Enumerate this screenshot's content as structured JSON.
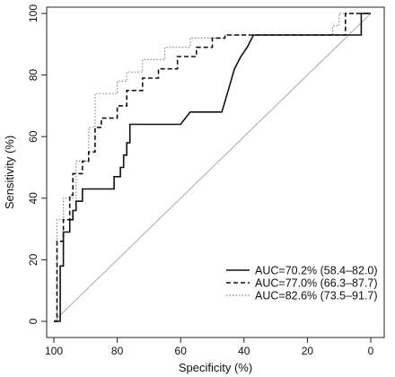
{
  "chart_data": {
    "type": "line",
    "xlabel": "Specificity (%)",
    "ylabel": "Sensitivity (%)",
    "x_reversed": true,
    "xlim": [
      100,
      0
    ],
    "ylim": [
      0,
      100
    ],
    "xticks": [
      100,
      80,
      60,
      40,
      20,
      0
    ],
    "yticks": [
      0,
      20,
      40,
      60,
      80,
      100
    ],
    "grid": false,
    "legend_position": "bottom-right",
    "reference_line": {
      "from": [
        100,
        0
      ],
      "to": [
        0,
        100
      ],
      "color": "#aaaaaa"
    },
    "series": [
      {
        "name": "AUC=70.2% (58.4–82.0)",
        "style": "solid",
        "color": "#111111",
        "points": [
          [
            100,
            0
          ],
          [
            98,
            0
          ],
          [
            98,
            18
          ],
          [
            97,
            18
          ],
          [
            97,
            29
          ],
          [
            95,
            29
          ],
          [
            95,
            33
          ],
          [
            94,
            33
          ],
          [
            94,
            36
          ],
          [
            93,
            36
          ],
          [
            93,
            39
          ],
          [
            91,
            39
          ],
          [
            91,
            43
          ],
          [
            81,
            43
          ],
          [
            81,
            47
          ],
          [
            79,
            47
          ],
          [
            79,
            50
          ],
          [
            78,
            50
          ],
          [
            78,
            54
          ],
          [
            77,
            54
          ],
          [
            77,
            58
          ],
          [
            76,
            58
          ],
          [
            76,
            64
          ],
          [
            60,
            64
          ],
          [
            57,
            68
          ],
          [
            47,
            68
          ],
          [
            45,
            75
          ],
          [
            43,
            82
          ],
          [
            41,
            86
          ],
          [
            39,
            89
          ],
          [
            37,
            93
          ],
          [
            3,
            93
          ],
          [
            3,
            100
          ],
          [
            0,
            100
          ]
        ]
      },
      {
        "name": "AUC=77.0% (66.3–87.7)",
        "style": "dashed",
        "color": "#111111",
        "points": [
          [
            100,
            0
          ],
          [
            99,
            0
          ],
          [
            99,
            26
          ],
          [
            97,
            26
          ],
          [
            97,
            33
          ],
          [
            95,
            33
          ],
          [
            95,
            41
          ],
          [
            94,
            41
          ],
          [
            94,
            48
          ],
          [
            91,
            48
          ],
          [
            91,
            52
          ],
          [
            89,
            52
          ],
          [
            89,
            55
          ],
          [
            87,
            55
          ],
          [
            87,
            63
          ],
          [
            85,
            63
          ],
          [
            85,
            66
          ],
          [
            80,
            66
          ],
          [
            80,
            70
          ],
          [
            77,
            70
          ],
          [
            77,
            75
          ],
          [
            72,
            75
          ],
          [
            72,
            79
          ],
          [
            67,
            79
          ],
          [
            67,
            82
          ],
          [
            61,
            82
          ],
          [
            61,
            86
          ],
          [
            55,
            86
          ],
          [
            55,
            89
          ],
          [
            50,
            89
          ],
          [
            50,
            92
          ],
          [
            46,
            92
          ],
          [
            46,
            93
          ],
          [
            8,
            93
          ],
          [
            8,
            100
          ],
          [
            0,
            100
          ]
        ]
      },
      {
        "name": "AUC=82.6% (73.5–91.7)",
        "style": "dotted",
        "color": "#888888",
        "points": [
          [
            100,
            0
          ],
          [
            99,
            0
          ],
          [
            99,
            33
          ],
          [
            97,
            33
          ],
          [
            97,
            40
          ],
          [
            93,
            40
          ],
          [
            93,
            52
          ],
          [
            89,
            52
          ],
          [
            89,
            63
          ],
          [
            87,
            63
          ],
          [
            87,
            74
          ],
          [
            80,
            74
          ],
          [
            80,
            78
          ],
          [
            77,
            78
          ],
          [
            77,
            81
          ],
          [
            72,
            81
          ],
          [
            72,
            85
          ],
          [
            65,
            85
          ],
          [
            65,
            89
          ],
          [
            57,
            89
          ],
          [
            57,
            92
          ],
          [
            46,
            92
          ],
          [
            46,
            93
          ],
          [
            12,
            93
          ],
          [
            12,
            96
          ],
          [
            10,
            96
          ],
          [
            10,
            100
          ],
          [
            0,
            100
          ]
        ]
      }
    ]
  }
}
